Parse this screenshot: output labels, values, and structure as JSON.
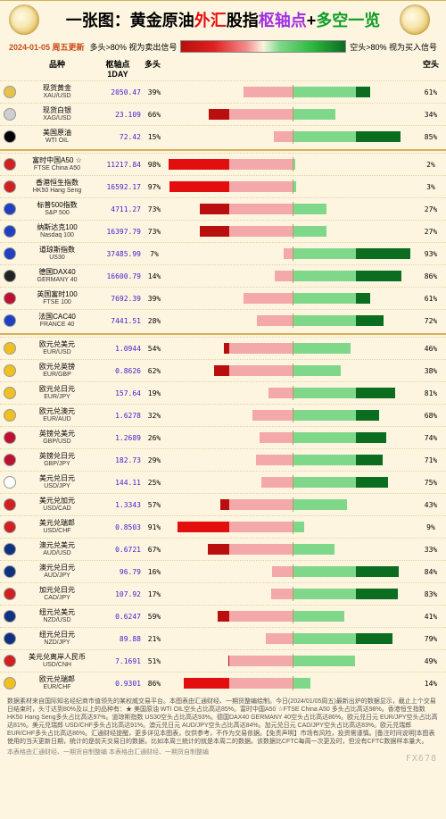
{
  "title": {
    "prefix": "一张图：",
    "p1": "黄金原油",
    "p2": "外汇",
    "p3": "股指",
    "p4": "枢轴点",
    "p5": "+",
    "p6": "多空一览"
  },
  "update_label": "2024-01-05 周五更新",
  "legend_left": "多头>80% 视为卖出信号",
  "legend_right": "空头>80% 视为买入信号",
  "columns": {
    "name": "品种",
    "pivot": "枢轴点\n1DAY",
    "long": "多头",
    "short": "空头"
  },
  "colors": {
    "bg": "#fdf5e0",
    "long_outer": "#b90f0e",
    "long_inner": "#f3a9a9",
    "short_outer": "#0b6d20",
    "short_inner": "#7fd88a",
    "highlight_red": "#e20f0e"
  },
  "groups": [
    {
      "rows": [
        {
          "icon": "#e6c24a",
          "name_cn": "现货黄金",
          "name_en": "XAU/USD",
          "pivot": "2050.47",
          "long": 39,
          "short": 61
        },
        {
          "icon": "#cfcfcf",
          "name_cn": "现货白银",
          "name_en": "XAG/USD",
          "pivot": "23.109",
          "long": 66,
          "short": 34
        },
        {
          "icon": "#000000",
          "name_cn": "美国原油",
          "name_en": "WTI OIL",
          "pivot": "72.42",
          "long": 15,
          "short": 85,
          "star": true
        }
      ]
    },
    {
      "rows": [
        {
          "icon": "#d02020",
          "name_cn": "富时中国A50 ☆",
          "name_en": "FTSE China A50",
          "pivot": "11217.84",
          "long": 98,
          "short": 2,
          "star": true
        },
        {
          "icon": "#d02020",
          "name_cn": "香港恒生指数",
          "name_en": "HK50 Hang Seng",
          "pivot": "16592.17",
          "long": 97,
          "short": 3,
          "star": true
        },
        {
          "icon": "#2040c0",
          "name_cn": "标普500指数",
          "name_en": "S&P 500",
          "pivot": "4711.27",
          "long": 73,
          "short": 27
        },
        {
          "icon": "#2040c0",
          "name_cn": "纳斯达克100",
          "name_en": "Nasdaq 100",
          "pivot": "16397.79",
          "long": 73,
          "short": 27
        },
        {
          "icon": "#2040c0",
          "name_cn": "道琼斯指数",
          "name_en": "US30",
          "pivot": "37485.99",
          "long": 7,
          "short": 93,
          "star": true
        },
        {
          "icon": "#222222",
          "name_cn": "德国DAX40",
          "name_en": "GERMANY 40",
          "pivot": "16600.79",
          "long": 14,
          "short": 86,
          "star": true
        },
        {
          "icon": "#c01030",
          "name_cn": "英国富时100",
          "name_en": "FTSE 100",
          "pivot": "7692.39",
          "long": 39,
          "short": 61
        },
        {
          "icon": "#2040c0",
          "name_cn": "法国CAC40",
          "name_en": "FRANCE 40",
          "pivot": "7441.51",
          "long": 28,
          "short": 72
        }
      ]
    },
    {
      "rows": [
        {
          "icon": "#f0c020",
          "name_cn": "欧元兑美元",
          "name_en": "EUR/USD",
          "pivot": "1.0944",
          "long": 54,
          "short": 46
        },
        {
          "icon": "#f0c020",
          "name_cn": "欧元兑英镑",
          "name_en": "EUR/GBP",
          "pivot": "0.8626",
          "long": 62,
          "short": 38
        },
        {
          "icon": "#f0c020",
          "name_cn": "欧元兑日元",
          "name_en": "EUR/JPY",
          "pivot": "157.64",
          "long": 19,
          "short": 81,
          "star": true
        },
        {
          "icon": "#f0c020",
          "name_cn": "欧元兑澳元",
          "name_en": "EUR/AUD",
          "pivot": "1.6278",
          "long": 32,
          "short": 68
        },
        {
          "icon": "#c01030",
          "name_cn": "英镑兑美元",
          "name_en": "GBP/USD",
          "pivot": "1.2689",
          "long": 26,
          "short": 74
        },
        {
          "icon": "#c01030",
          "name_cn": "英镑兑日元",
          "name_en": "GBP/JPY",
          "pivot": "182.73",
          "long": 29,
          "short": 71
        },
        {
          "icon": "#ffffff",
          "name_cn": "美元兑日元",
          "name_en": "USD/JPY",
          "pivot": "144.11",
          "long": 25,
          "short": 75
        },
        {
          "icon": "#d02020",
          "name_cn": "美元兑加元",
          "name_en": "USD/CAD",
          "pivot": "1.3343",
          "long": 57,
          "short": 43
        },
        {
          "icon": "#d02020",
          "name_cn": "美元兑瑞郎",
          "name_en": "USD/CHF",
          "pivot": "0.8503",
          "long": 91,
          "short": 9,
          "star": true
        },
        {
          "icon": "#103080",
          "name_cn": "澳元兑美元",
          "name_en": "AUD/USD",
          "pivot": "0.6721",
          "long": 67,
          "short": 33
        },
        {
          "icon": "#103080",
          "name_cn": "澳元兑日元",
          "name_en": "AUD/JPY",
          "pivot": "96.79",
          "long": 16,
          "short": 84,
          "star": true
        },
        {
          "icon": "#d02020",
          "name_cn": "加元兑日元",
          "name_en": "CAD/JPY",
          "pivot": "107.92",
          "long": 17,
          "short": 83,
          "star": true
        },
        {
          "icon": "#103080",
          "name_cn": "纽元兑美元",
          "name_en": "NZD/USD",
          "pivot": "0.6247",
          "long": 59,
          "short": 41
        },
        {
          "icon": "#103080",
          "name_cn": "纽元兑日元",
          "name_en": "NZD/JPY",
          "pivot": "89.88",
          "long": 21,
          "short": 79
        },
        {
          "icon": "#d02020",
          "name_cn": "美元兑离岸人民币",
          "name_en": "USD/CNH",
          "pivot": "7.1691",
          "long": 51,
          "short": 49
        },
        {
          "icon": "#f0c020",
          "name_cn": "欧元兑瑞郎",
          "name_en": "EUR/CHF",
          "pivot": "0.9301",
          "long": 86,
          "short": 14,
          "star": true
        }
      ]
    }
  ],
  "footnote": "数据素材来自国际知名经纪商市值领先的某权威交易平台。本图表由汇通财经、一期货整编绘制。今日(2024/01/05周五)最新出炉的数据显示，截止上个交易日结束时，头寸达到80%及以上的品种有：★ 美国原油 WTI OIL空头占比高达85%。富时中国A50 ☆FTSE China A50 多头占比高达98%。香港恒生指数 HK50 Hang Seng多头占比高达97%。道琼斯指数 US30空头占比高达93%。德国DAX40 GERMANY 40空头占比高达86%。欧元兑日元 EUR/JPY空头占比高达81%。美元兑瑞郎 USD/CHF多头占比高达91%。澳元兑日元 AUD/JPY空头占比高达84%。加元兑日元 CAD/JPY空头占比高达83%。欧元兑瑞郎 EUR/CHF多头占比高达86%。汇通财经提醒，更多详见本图表，仅供参考，不作为交易依据。【免责声明】市场有风险，投资需谨慎。[备注时间说明]本图表使用的当天更新日期，统计的是前天交易日的数据，比如本周三统计的就是本周二的数据。该数据比CFTC每周一次更及时，但没有CFTC数据样本量大。",
  "source_line": "本表格由汇通财经、一期货自制整编                                                    本表格由汇通财经、一期货自制整编",
  "watermark": "FX678"
}
